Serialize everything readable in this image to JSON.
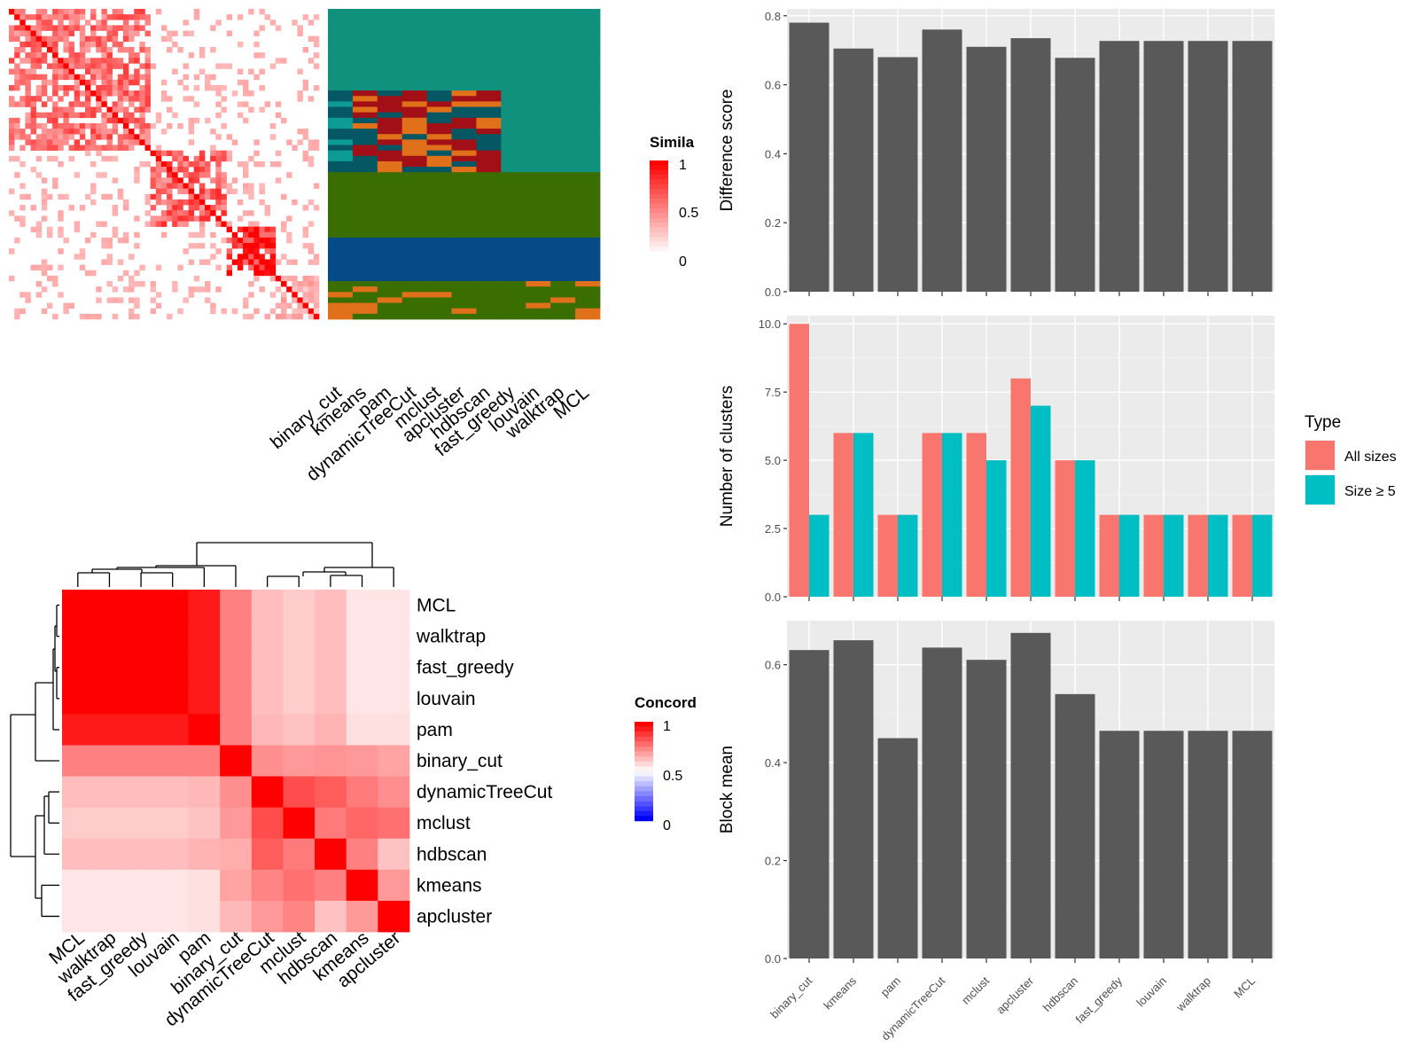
{
  "chart_data": [
    {
      "type": "heatmap",
      "legend": {
        "title": "Simila",
        "ticks": [
          "1",
          "0.5",
          "0"
        ]
      },
      "methods": [
        "binary_cut",
        "kmeans",
        "pam",
        "dynamicTreeCut",
        "mclust",
        "apcluster",
        "hdbscan",
        "fast_greedy",
        "louvain",
        "walktrap",
        "MCL"
      ],
      "blocks": [
        {
          "start": 0,
          "size": 26,
          "value": 0.55
        },
        {
          "start": 26,
          "size": 14,
          "value": 0.6
        },
        {
          "start": 40,
          "size": 9,
          "value": 0.85
        },
        {
          "start": 49,
          "size": 8,
          "value": 0.3
        }
      ],
      "cluster_colors": [
        "#10917e",
        "#3a6e00",
        "#064a88",
        "#e0701a",
        "#a30f16",
        "#045763",
        "#0d9b96"
      ]
    },
    {
      "type": "heatmap",
      "legend": {
        "title": "Concord",
        "ticks": [
          "1",
          "0.5",
          "0"
        ]
      },
      "methods_order": [
        "MCL",
        "walktrap",
        "fast_greedy",
        "louvain",
        "pam",
        "binary_cut",
        "dynamicTreeCut",
        "mclust",
        "hdbscan",
        "kmeans",
        "apcluster"
      ],
      "matrix": [
        [
          1,
          1,
          1,
          1,
          0.95,
          0.75,
          0.63,
          0.6,
          0.63,
          0.55,
          0.55
        ],
        [
          1,
          1,
          1,
          1,
          0.95,
          0.75,
          0.63,
          0.6,
          0.63,
          0.55,
          0.55
        ],
        [
          1,
          1,
          1,
          1,
          0.95,
          0.75,
          0.63,
          0.6,
          0.63,
          0.55,
          0.55
        ],
        [
          1,
          1,
          1,
          1,
          0.95,
          0.75,
          0.63,
          0.6,
          0.63,
          0.55,
          0.55
        ],
        [
          0.95,
          0.95,
          0.95,
          0.95,
          1,
          0.75,
          0.64,
          0.62,
          0.65,
          0.56,
          0.56
        ],
        [
          0.75,
          0.75,
          0.75,
          0.75,
          0.75,
          1,
          0.72,
          0.7,
          0.71,
          0.7,
          0.68
        ],
        [
          0.63,
          0.63,
          0.63,
          0.63,
          0.64,
          0.72,
          1,
          0.85,
          0.82,
          0.76,
          0.72
        ],
        [
          0.6,
          0.6,
          0.6,
          0.6,
          0.62,
          0.7,
          0.85,
          1,
          0.76,
          0.8,
          0.78
        ],
        [
          0.63,
          0.63,
          0.63,
          0.63,
          0.65,
          0.66,
          0.82,
          0.76,
          1,
          0.75,
          0.62
        ],
        [
          0.55,
          0.55,
          0.55,
          0.55,
          0.56,
          0.68,
          0.74,
          0.78,
          0.75,
          1,
          0.7
        ],
        [
          0.55,
          0.55,
          0.55,
          0.55,
          0.56,
          0.64,
          0.7,
          0.74,
          0.62,
          0.7,
          1
        ]
      ]
    },
    {
      "type": "bar",
      "ylabel": "Difference score",
      "categories": [
        "binary_cut",
        "kmeans",
        "pam",
        "dynamicTreeCut",
        "mclust",
        "apcluster",
        "hdbscan",
        "fast_greedy",
        "louvain",
        "walktrap",
        "MCL"
      ],
      "values": [
        0.78,
        0.705,
        0.68,
        0.76,
        0.71,
        0.735,
        0.678,
        0.727,
        0.727,
        0.727,
        0.727
      ],
      "ylim": [
        0,
        0.82
      ],
      "yticks": [
        "0.0",
        "0.2",
        "0.4",
        "0.6",
        "0.8"
      ],
      "ytick_values": [
        0,
        0.2,
        0.4,
        0.6,
        0.8
      ]
    },
    {
      "type": "bar",
      "ylabel": "Number of clusters",
      "categories": [
        "binary_cut",
        "kmeans",
        "pam",
        "dynamicTreeCut",
        "mclust",
        "apcluster",
        "hdbscan",
        "fast_greedy",
        "louvain",
        "walktrap",
        "MCL"
      ],
      "series": [
        {
          "name": "All sizes",
          "color": "#f8766d",
          "values": [
            10,
            6,
            3,
            6,
            6,
            8,
            5,
            3,
            3,
            3,
            3
          ]
        },
        {
          "name": "Size ≥ 5",
          "color": "#00bfc4",
          "values": [
            3,
            6,
            3,
            6,
            5,
            7,
            5,
            3,
            3,
            3,
            3
          ]
        }
      ],
      "ylim": [
        0,
        10.3
      ],
      "yticks": [
        "0.0",
        "2.5",
        "5.0",
        "7.5",
        "10.0"
      ],
      "ytick_values": [
        0,
        2.5,
        5,
        7.5,
        10
      ],
      "legend": {
        "title": "Type",
        "placement": "right"
      }
    },
    {
      "type": "bar",
      "ylabel": "Block mean",
      "categories": [
        "binary_cut",
        "kmeans",
        "pam",
        "dynamicTreeCut",
        "mclust",
        "apcluster",
        "hdbscan",
        "fast_greedy",
        "louvain",
        "walktrap",
        "MCL"
      ],
      "values": [
        0.63,
        0.65,
        0.45,
        0.635,
        0.61,
        0.665,
        0.54,
        0.465,
        0.465,
        0.465,
        0.465
      ],
      "ylim": [
        0,
        0.69
      ],
      "yticks": [
        "0.0",
        "0.2",
        "0.4",
        "0.6"
      ],
      "ytick_values": [
        0,
        0.2,
        0.4,
        0.6
      ]
    }
  ]
}
